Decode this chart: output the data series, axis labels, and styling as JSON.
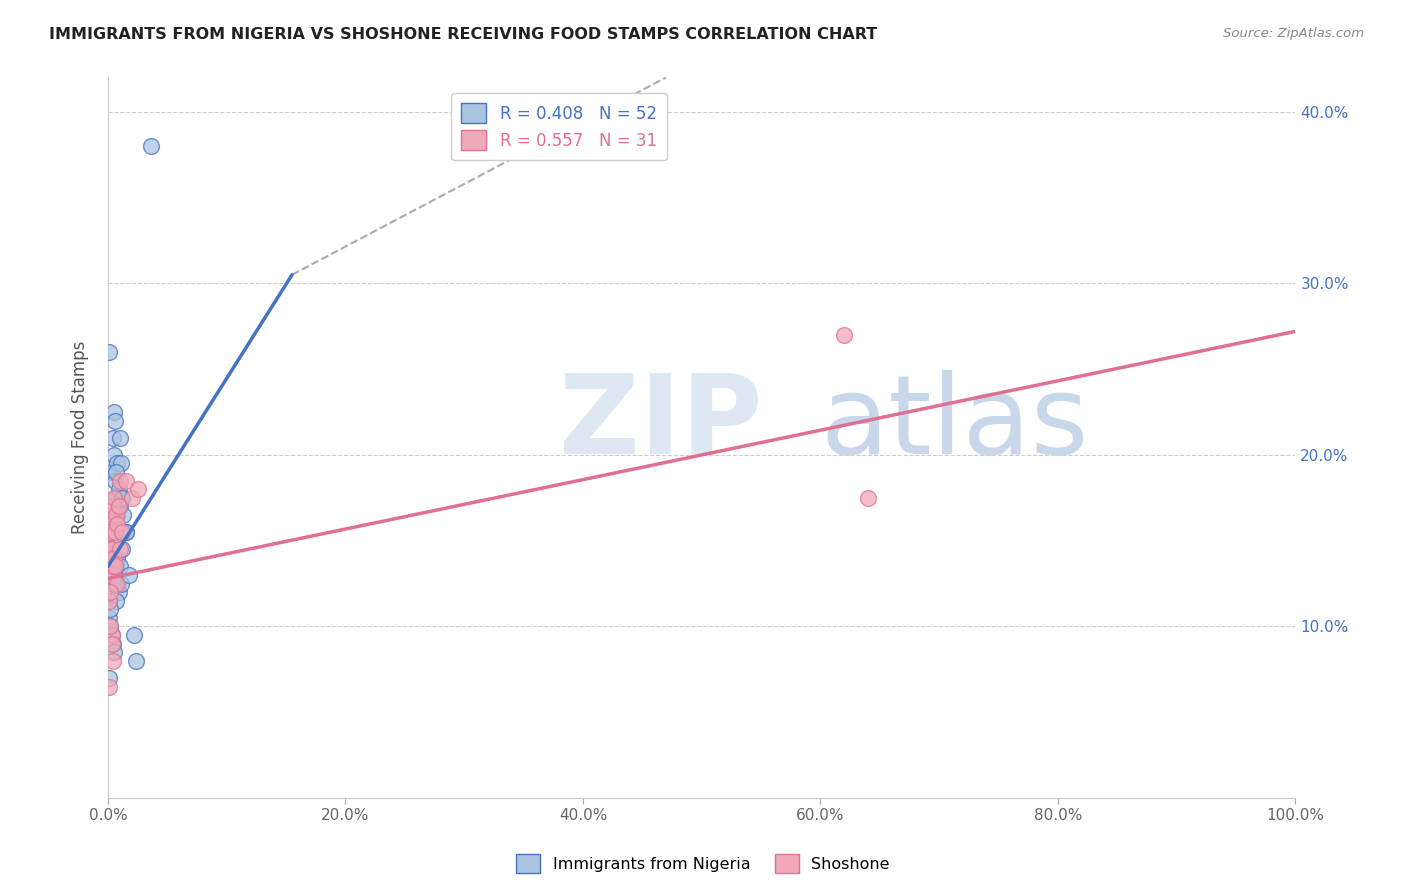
{
  "title": "IMMIGRANTS FROM NIGERIA VS SHOSHONE RECEIVING FOOD STAMPS CORRELATION CHART",
  "source": "Source: ZipAtlas.com",
  "ylabel": "Receiving Food Stamps",
  "xlim": [
    0,
    1.0
  ],
  "ylim": [
    0,
    0.42
  ],
  "xticks": [
    0.0,
    0.2,
    0.4,
    0.6,
    0.8,
    1.0
  ],
  "xticklabels": [
    "0.0%",
    "20.0%",
    "40.0%",
    "60.0%",
    "80.0%",
    "100.0%"
  ],
  "yticks": [
    0.0,
    0.1,
    0.2,
    0.3,
    0.4
  ],
  "yticklabels_right": [
    "",
    "10.0%",
    "20.0%",
    "30.0%",
    "40.0%"
  ],
  "legend_label1": "R = 0.408   N = 52",
  "legend_label2": "R = 0.557   N = 31",
  "legend_series1": "Immigrants from Nigeria",
  "legend_series2": "Shoshone",
  "color_nigeria": "#aac4e0",
  "color_shoshone": "#f0a8b8",
  "color_line_nigeria": "#4472c4",
  "color_line_shoshone": "#e07090",
  "color_legend_nigeria": "#4472c4",
  "color_legend_shoshone": "#e07090",
  "nigeria_line_x": [
    0.0,
    0.155
  ],
  "nigeria_line_y": [
    0.135,
    0.305
  ],
  "dash_line_x": [
    0.155,
    0.47
  ],
  "dash_line_y": [
    0.305,
    0.42
  ],
  "shoshone_line_x": [
    0.0,
    1.0
  ],
  "shoshone_line_y": [
    0.128,
    0.272
  ],
  "background_color": "#ffffff",
  "grid_color": "#cccccc",
  "nigeria_x": [
    0.003,
    0.004,
    0.005,
    0.006,
    0.007,
    0.008,
    0.009,
    0.01,
    0.011,
    0.012,
    0.003,
    0.005,
    0.006,
    0.007,
    0.008,
    0.009,
    0.01,
    0.012,
    0.013,
    0.015,
    0.002,
    0.003,
    0.004,
    0.005,
    0.006,
    0.007,
    0.008,
    0.009,
    0.01,
    0.011,
    0.001,
    0.002,
    0.003,
    0.004,
    0.005,
    0.006,
    0.007,
    0.012,
    0.015,
    0.018,
    0.001,
    0.001,
    0.002,
    0.002,
    0.003,
    0.004,
    0.005,
    0.022,
    0.024,
    0.001,
    0.036,
    0.001
  ],
  "nigeria_y": [
    0.19,
    0.21,
    0.2,
    0.185,
    0.175,
    0.195,
    0.17,
    0.21,
    0.195,
    0.175,
    0.165,
    0.225,
    0.22,
    0.19,
    0.165,
    0.18,
    0.17,
    0.175,
    0.165,
    0.155,
    0.155,
    0.145,
    0.16,
    0.14,
    0.15,
    0.135,
    0.14,
    0.12,
    0.135,
    0.125,
    0.14,
    0.13,
    0.135,
    0.125,
    0.13,
    0.125,
    0.115,
    0.145,
    0.155,
    0.13,
    0.115,
    0.105,
    0.11,
    0.1,
    0.095,
    0.09,
    0.085,
    0.095,
    0.08,
    0.26,
    0.38,
    0.07
  ],
  "shoshone_x": [
    0.001,
    0.002,
    0.003,
    0.004,
    0.005,
    0.006,
    0.007,
    0.008,
    0.009,
    0.01,
    0.001,
    0.002,
    0.003,
    0.004,
    0.005,
    0.006,
    0.008,
    0.01,
    0.012,
    0.015,
    0.02,
    0.025,
    0.001,
    0.002,
    0.003,
    0.002,
    0.003,
    0.004,
    0.001,
    0.62,
    0.64
  ],
  "shoshone_y": [
    0.155,
    0.145,
    0.165,
    0.17,
    0.175,
    0.155,
    0.165,
    0.16,
    0.17,
    0.185,
    0.13,
    0.14,
    0.145,
    0.135,
    0.14,
    0.135,
    0.125,
    0.145,
    0.155,
    0.185,
    0.175,
    0.18,
    0.115,
    0.12,
    0.095,
    0.1,
    0.09,
    0.08,
    0.065,
    0.27,
    0.175
  ]
}
